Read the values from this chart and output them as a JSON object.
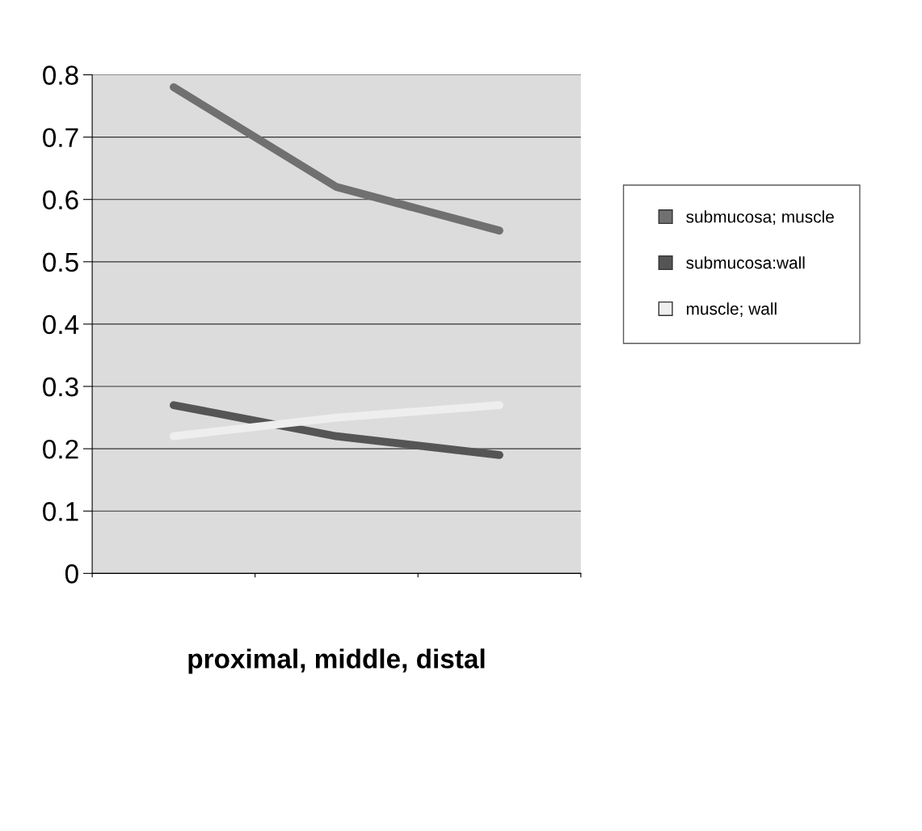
{
  "chart_data": {
    "type": "line",
    "xlabel": "proximal, middle, distal",
    "categories": [
      null,
      null,
      null
    ],
    "series": [
      {
        "name": "submucosa; muscle",
        "color": "#707070",
        "values": [
          0.78,
          0.62,
          0.55
        ]
      },
      {
        "name": "submucosa:wall",
        "color": "#555555",
        "values": [
          0.27,
          0.22,
          0.19
        ]
      },
      {
        "name": "muscle; wall",
        "color": "#eeeeee",
        "values": [
          0.22,
          0.25,
          0.27
        ]
      }
    ],
    "ylim": [
      0,
      0.8
    ],
    "yticks": [
      0,
      0.1,
      0.2,
      0.3,
      0.4,
      0.5,
      0.6,
      0.7,
      0.8
    ],
    "grid": "y",
    "legend": "right",
    "line_style": "solid",
    "marker": "none"
  }
}
